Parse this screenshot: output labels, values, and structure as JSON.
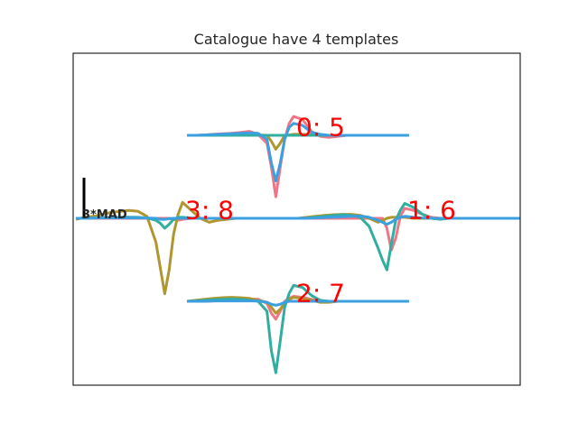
{
  "chart_data": {
    "type": "line",
    "title": "Catalogue have 4 templates",
    "xlabel": "",
    "ylabel": "",
    "grid": false,
    "legend": "none",
    "scale_bar_label": "3*MAD",
    "channel_colors": [
      "#f07585",
      "#b0962f",
      "#30ae9f",
      "#3b9fe0"
    ],
    "samples": [
      -20,
      -18,
      -16,
      -14,
      -12,
      -10,
      -8,
      -6,
      -4,
      -2,
      -1,
      0,
      1,
      2,
      3,
      4,
      6,
      8,
      10,
      12,
      14,
      16,
      18,
      20,
      22,
      24,
      26,
      28,
      30
    ],
    "templates": [
      {
        "cluster": 0,
        "label": "0: 5",
        "channels": [
          [
            0,
            0,
            0.02,
            0.05,
            0.08,
            0.1,
            0.14,
            0.2,
            0.05,
            -0.4,
            -1.6,
            -3.1,
            -1.6,
            -0.2,
            0.6,
            0.95,
            0.8,
            0.2,
            -0.05,
            -0.1,
            -0.05,
            0,
            0,
            0,
            0,
            0,
            0,
            0,
            0
          ],
          [
            0,
            0,
            0,
            0.02,
            0.02,
            0.02,
            0.02,
            0.03,
            0.02,
            0.0,
            -0.3,
            -0.7,
            -0.4,
            0.0,
            0.02,
            0.05,
            0.05,
            0.03,
            0,
            0,
            0,
            0,
            0,
            0,
            0,
            0,
            0,
            0,
            0
          ],
          [
            0,
            0,
            0,
            0,
            0,
            0,
            0,
            0,
            0,
            0,
            0,
            0,
            0,
            0,
            0,
            0,
            0,
            0,
            0,
            0,
            0,
            0,
            0,
            0,
            0,
            0,
            0,
            0,
            0
          ],
          [
            0,
            0,
            0.02,
            0.04,
            0.06,
            0.08,
            0.1,
            0.12,
            0.1,
            -0.2,
            -1.4,
            -2.3,
            -1.4,
            -0.2,
            0.4,
            0.6,
            0.5,
            0.15,
            0.05,
            0,
            0,
            0,
            0,
            0,
            0,
            0,
            0,
            0,
            0
          ]
        ]
      },
      {
        "cluster": 1,
        "label": "1: 6",
        "channels": [
          [
            0,
            0,
            0,
            0,
            0,
            0,
            0,
            0,
            0,
            0,
            0,
            -0.5,
            -1.6,
            -1.0,
            0.1,
            0.5,
            0.4,
            0.2,
            0.05,
            0,
            0,
            0,
            0,
            0,
            0,
            0,
            0,
            0,
            0
          ],
          [
            0,
            0.05,
            0.1,
            0.15,
            0.18,
            0.2,
            0.2,
            0.15,
            0.0,
            -0.2,
            -0.1,
            0,
            0.05,
            0.05,
            0.05,
            0.05,
            0,
            0,
            0,
            0,
            0,
            0,
            0,
            0,
            0,
            0,
            0,
            0,
            0
          ],
          [
            0,
            0.02,
            0.05,
            0.1,
            0.15,
            0.18,
            0.15,
            0.05,
            -0.4,
            -1.5,
            -2.1,
            -2.6,
            -1.3,
            -0.1,
            0.4,
            0.75,
            0.55,
            0.2,
            0.0,
            -0.05,
            0,
            0,
            0,
            0,
            0,
            0,
            0,
            0,
            0
          ],
          [
            0,
            0,
            0.02,
            0.04,
            0.06,
            0.08,
            0.1,
            0.12,
            0.05,
            -0.1,
            -0.2,
            -0.3,
            -0.2,
            -0.05,
            0.05,
            0.1,
            0.05,
            0.02,
            0,
            0,
            0,
            0,
            0,
            0,
            0,
            0,
            0,
            0,
            0
          ]
        ]
      },
      {
        "cluster": 2,
        "label": "2: 7",
        "channels": [
          [
            0,
            0,
            0,
            0.02,
            0.04,
            0.08,
            0.1,
            0.12,
            0.1,
            -0.1,
            -0.6,
            -0.9,
            -0.5,
            0.0,
            0.15,
            0.25,
            0.2,
            0.1,
            0,
            0,
            0,
            0,
            0,
            0,
            0,
            0,
            0,
            0,
            0
          ],
          [
            0,
            0.05,
            0.1,
            0.15,
            0.18,
            0.2,
            0.18,
            0.15,
            0.05,
            -0.05,
            -0.3,
            -0.6,
            -0.4,
            -0.1,
            0.1,
            0.2,
            0.15,
            0.05,
            -0.05,
            -0.05,
            0,
            0,
            0,
            0,
            0,
            0,
            0,
            0,
            0
          ],
          [
            0,
            0.02,
            0.05,
            0.08,
            0.1,
            0.12,
            0.1,
            0.05,
            0.0,
            -0.5,
            -2.5,
            -3.6,
            -2.0,
            -0.3,
            0.4,
            0.8,
            0.7,
            0.3,
            0.05,
            0,
            0,
            0,
            0,
            0,
            0,
            0,
            0,
            0,
            0
          ],
          [
            0,
            0,
            0,
            0.02,
            0.02,
            0.02,
            0.02,
            0.02,
            0.02,
            -0.05,
            -0.15,
            -0.2,
            -0.15,
            -0.05,
            0,
            0,
            0,
            0,
            0,
            0,
            0,
            0,
            0,
            0,
            0,
            0,
            0,
            0,
            0
          ]
        ]
      },
      {
        "cluster": 3,
        "label": "3: 8",
        "channels": [
          [
            0,
            0,
            0,
            0,
            0,
            0,
            0,
            0,
            0,
            0,
            0,
            0,
            0,
            -0.05,
            -0.1,
            -0.05,
            0,
            0,
            0,
            0,
            0,
            0,
            0,
            0,
            0,
            0,
            0,
            0,
            0
          ],
          [
            -0.05,
            0.05,
            0.1,
            0.2,
            0.3,
            0.35,
            0.4,
            0.35,
            0.1,
            -1.2,
            -2.5,
            -3.8,
            -2.6,
            -0.8,
            0.2,
            0.8,
            0.4,
            0.0,
            -0.2,
            -0.1,
            -0.05,
            0,
            0,
            0,
            0,
            0,
            0,
            0,
            0
          ],
          [
            0,
            0,
            0.02,
            0.04,
            0.05,
            0.05,
            0.06,
            0.05,
            0.02,
            -0.1,
            -0.25,
            -0.5,
            -0.3,
            -0.05,
            0.05,
            0.05,
            0.02,
            0,
            0,
            0,
            0,
            0,
            0,
            0,
            0,
            0,
            0,
            0,
            0
          ],
          [
            0,
            0,
            0.02,
            0.02,
            0.02,
            0.02,
            0.02,
            0.02,
            0.02,
            0,
            -0.05,
            -0.05,
            -0.02,
            0,
            0,
            0,
            0,
            0,
            0,
            0,
            0,
            0,
            0,
            0,
            0,
            0,
            0,
            0,
            0
          ]
        ]
      }
    ]
  }
}
